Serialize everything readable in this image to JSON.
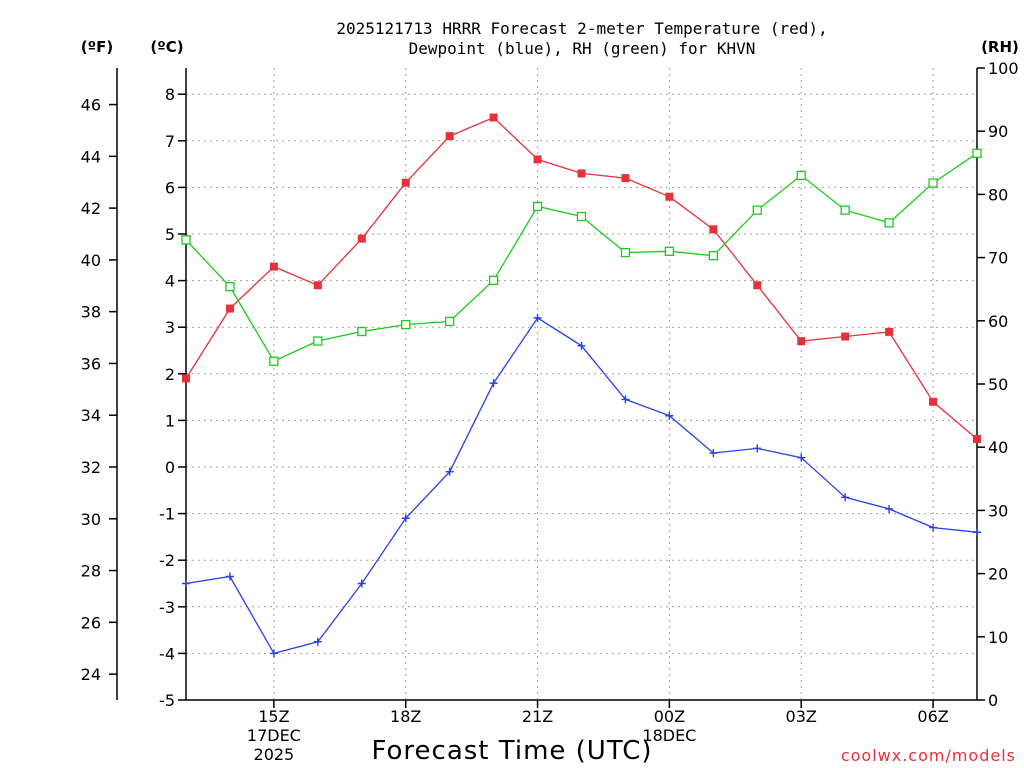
{
  "chart_data": {
    "type": "line",
    "title_line1": "2025121713 HRRR Forecast 2-meter Temperature (red),",
    "title_line2": "Dewpoint (blue), RH (green) for KHVN",
    "xlabel": "Forecast Time (UTC)",
    "credit": "coolwx.com/models",
    "units": {
      "fahrenheit": "(ºF)",
      "celsius": "(ºC)",
      "rh": "(RH)"
    },
    "x": [
      13,
      14,
      15,
      16,
      17,
      18,
      19,
      20,
      21,
      22,
      23,
      24,
      25,
      26,
      27,
      28,
      29,
      30,
      31
    ],
    "xlim": [
      13,
      31
    ],
    "x_ticks": [
      {
        "x": 15,
        "label": "15Z",
        "sub1": "17DEC",
        "sub2": "2025"
      },
      {
        "x": 18,
        "label": "18Z",
        "sub1": "",
        "sub2": ""
      },
      {
        "x": 21,
        "label": "21Z",
        "sub1": "",
        "sub2": ""
      },
      {
        "x": 24,
        "label": "00Z",
        "sub1": "18DEC",
        "sub2": ""
      },
      {
        "x": 27,
        "label": "03Z",
        "sub1": "",
        "sub2": ""
      },
      {
        "x": 30,
        "label": "06Z",
        "sub1": "",
        "sub2": ""
      }
    ],
    "ylim_c": [
      -5,
      8.6
    ],
    "y_ticks_c": [
      "-5",
      "-4",
      "-3",
      "-2",
      "-1",
      "0",
      "1",
      "2",
      "3",
      "4",
      "5",
      "6",
      "7",
      "8"
    ],
    "y_ticks_f": [
      "24",
      "26",
      "28",
      "30",
      "32",
      "34",
      "36",
      "38",
      "40",
      "42",
      "44",
      "46"
    ],
    "ylim_rh": [
      0,
      100
    ],
    "y_ticks_rh": [
      "0",
      "10",
      "20",
      "30",
      "40",
      "50",
      "60",
      "70",
      "80",
      "90",
      "100"
    ],
    "series": [
      {
        "name": "Temperature",
        "color": "#e8303a",
        "marker": "filled-square",
        "axis": "celsius",
        "values": [
          1.9,
          3.4,
          4.3,
          3.9,
          4.9,
          6.1,
          7.1,
          7.5,
          6.6,
          6.3,
          6.2,
          5.8,
          5.1,
          3.9,
          2.7,
          2.8,
          2.9,
          1.4,
          0.6
        ]
      },
      {
        "name": "Dewpoint",
        "color": "#2840e8",
        "marker": "plus",
        "axis": "celsius",
        "values": [
          -2.5,
          -2.35,
          -4.0,
          -3.75,
          -2.5,
          -1.1,
          -0.1,
          1.8,
          3.2,
          2.6,
          1.45,
          1.1,
          0.3,
          0.4,
          0.2,
          -0.65,
          -0.9,
          -1.3,
          -1.4
        ]
      },
      {
        "name": "RH",
        "color": "#18cc18",
        "marker": "open-square",
        "axis": "rh",
        "values": [
          72.8,
          65.4,
          53.6,
          56.8,
          58.3,
          59.4,
          59.9,
          66.4,
          78.1,
          76.5,
          70.8,
          71.0,
          70.3,
          77.5,
          83.0,
          77.5,
          75.5,
          81.8,
          86.5
        ]
      }
    ]
  }
}
